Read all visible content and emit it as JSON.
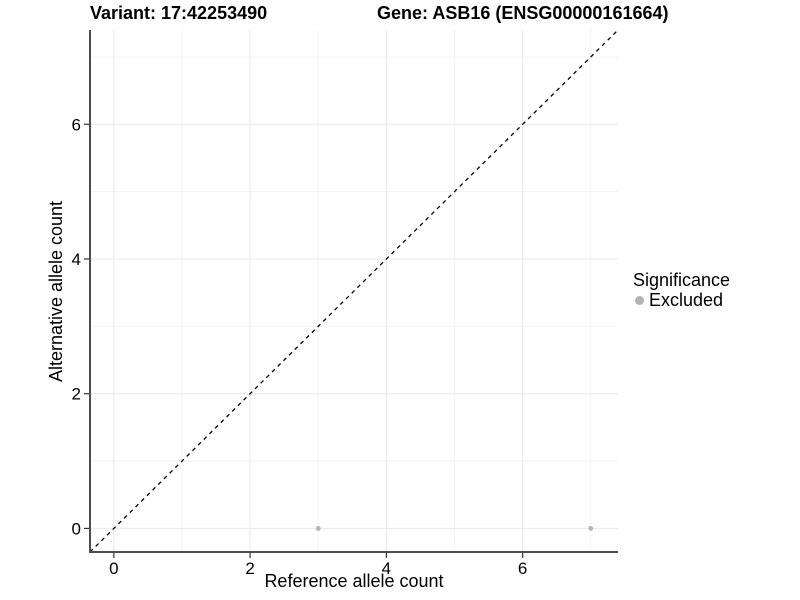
{
  "header": {
    "variant_title": "Variant: 17:42253490",
    "gene_title": "Gene: ASB16 (ENSG00000161664)"
  },
  "chart_data": {
    "type": "scatter",
    "xlabel": "Reference allele count",
    "ylabel": "Alternative allele count",
    "xlim": [
      -0.35,
      7.4
    ],
    "ylim": [
      -0.35,
      7.4
    ],
    "x_ticks": [
      0,
      2,
      4,
      6
    ],
    "y_ticks": [
      0,
      2,
      4,
      6
    ],
    "x_minor_ticks": [
      1,
      3,
      5,
      7
    ],
    "y_minor_ticks": [
      1,
      3,
      5,
      7
    ],
    "grid": "major+minor",
    "identity_line": {
      "slope": 1,
      "intercept": 0,
      "style": "dashed",
      "color": "#000000"
    },
    "series": [
      {
        "name": "Excluded",
        "color": "#b3b3b3",
        "points": [
          [
            3,
            0
          ],
          [
            7,
            0
          ]
        ]
      }
    ],
    "legend": {
      "title": "Significance",
      "position": "right",
      "entries": [
        {
          "label": "Excluded",
          "color": "#b3b3b3"
        }
      ]
    }
  }
}
